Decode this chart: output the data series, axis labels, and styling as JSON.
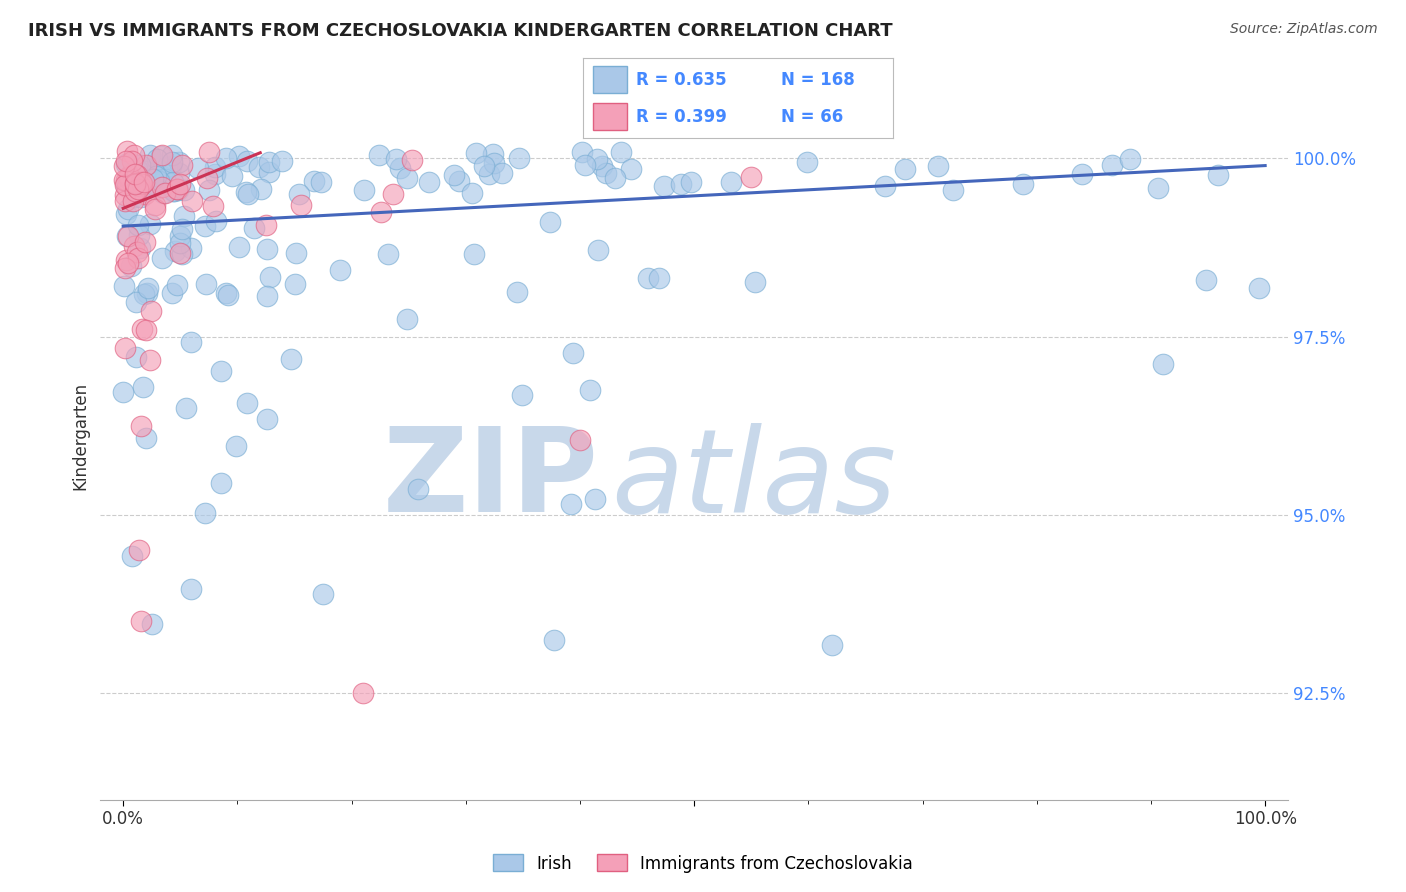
{
  "title": "IRISH VS IMMIGRANTS FROM CZECHOSLOVAKIA KINDERGARTEN CORRELATION CHART",
  "source": "Source: ZipAtlas.com",
  "ylabel": "Kindergarten",
  "yticks": [
    92.5,
    95.0,
    97.5,
    100.0
  ],
  "ytick_labels": [
    "92.5%",
    "95.0%",
    "97.5%",
    "100.0%"
  ],
  "ylim": [
    91.0,
    101.2
  ],
  "xlim_pct": [
    0.0,
    100.0
  ],
  "blue_R": 0.635,
  "blue_N": 168,
  "pink_R": 0.399,
  "pink_N": 66,
  "blue_color": "#aac8e8",
  "blue_edge": "#7aaed4",
  "pink_color": "#f4a0b8",
  "pink_edge": "#e06080",
  "blue_line_color": "#4466bb",
  "pink_line_color": "#cc3355",
  "legend_label_blue": "Irish",
  "legend_label_pink": "Immigrants from Czechoslovakia",
  "watermark_top": "ZIP",
  "watermark_bottom": "atlas",
  "watermark_color": "#c8d8ea",
  "background_color": "#ffffff",
  "grid_color": "#cccccc",
  "tick_color": "#4488ff",
  "xtick_color": "#333333"
}
